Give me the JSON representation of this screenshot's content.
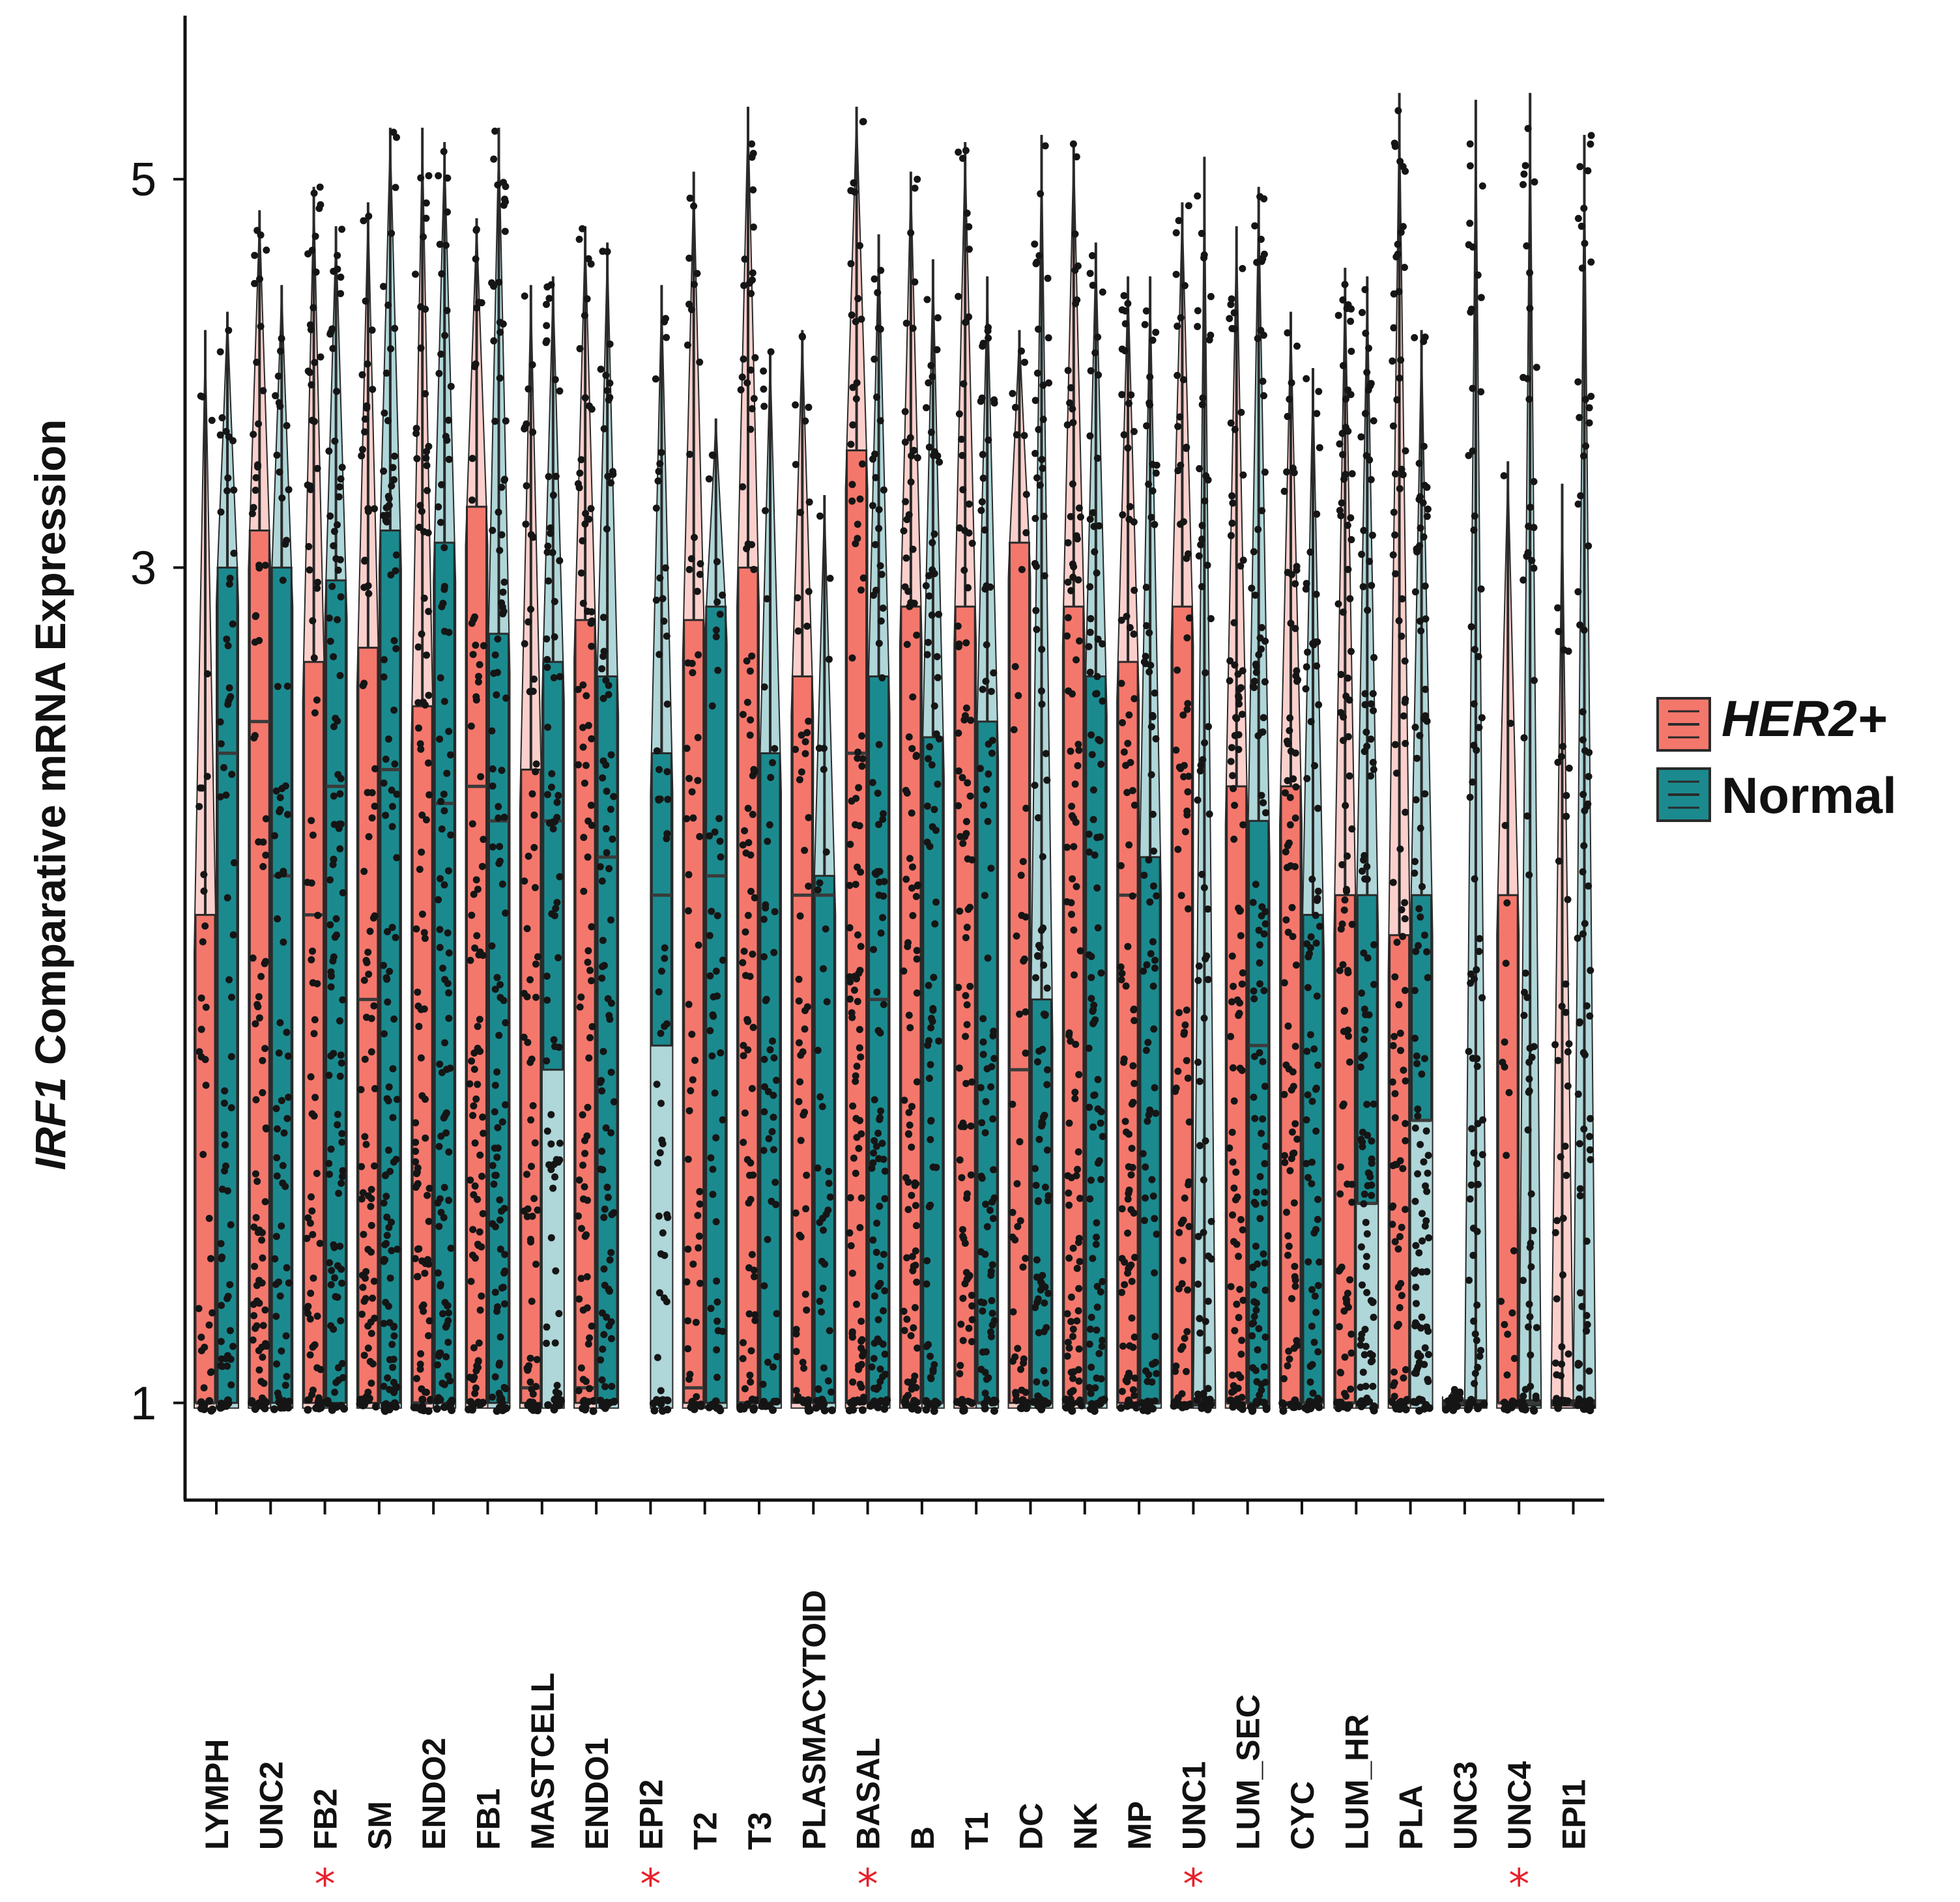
{
  "chart_data": {
    "type": "violin-box",
    "title": "",
    "ylabel_gene": "IRF1",
    "ylabel_rest": " Comparative mRNA Expression",
    "xlabel": "",
    "yscale": "log",
    "ylim": [
      0.88,
      6.2
    ],
    "yticks": [
      {
        "value": 1,
        "label": "1"
      },
      {
        "value": 3,
        "label": "3"
      },
      {
        "value": 5,
        "label": "5"
      }
    ],
    "legend": {
      "position": "right",
      "items": [
        {
          "label": "HER2+",
          "italic": true,
          "color": "#f4776c"
        },
        {
          "label": "Normal",
          "italic": false,
          "color": "#1b8a8e"
        }
      ]
    },
    "colors": {
      "her2": "#f4776c",
      "normal": "#1b8a8e",
      "star": "#e8202a",
      "points": "#151515"
    },
    "categories": [
      {
        "name": "LYMPH",
        "star": false,
        "her2": {
          "q1": 1.0,
          "median": 1.0,
          "q3": 1.9,
          "max": 4.1,
          "dots": 0.25
        },
        "normal": {
          "q1": 1.0,
          "median": 2.35,
          "q3": 3.0,
          "max": 4.2,
          "dots": 0.6
        }
      },
      {
        "name": "UNC2",
        "star": false,
        "her2": {
          "q1": 1.0,
          "median": 2.45,
          "q3": 3.15,
          "max": 4.8,
          "dots": 0.8
        },
        "normal": {
          "q1": 1.0,
          "median": 2.0,
          "q3": 3.0,
          "max": 4.35,
          "dots": 0.6
        }
      },
      {
        "name": "FB2",
        "star": true,
        "her2": {
          "q1": 1.0,
          "median": 1.9,
          "q3": 2.65,
          "max": 4.95,
          "dots": 0.7
        },
        "normal": {
          "q1": 1.0,
          "median": 2.25,
          "q3": 2.95,
          "max": 4.7,
          "dots": 1.0
        }
      },
      {
        "name": "SM",
        "star": false,
        "her2": {
          "q1": 1.0,
          "median": 1.7,
          "q3": 2.7,
          "max": 4.85,
          "dots": 0.8
        },
        "normal": {
          "q1": 1.0,
          "median": 2.3,
          "q3": 3.15,
          "max": 5.35,
          "dots": 1.0
        }
      },
      {
        "name": "ENDO2",
        "star": false,
        "her2": {
          "q1": 1.0,
          "median": 1.0,
          "q3": 2.5,
          "max": 5.35,
          "dots": 0.9
        },
        "normal": {
          "q1": 1.0,
          "median": 2.2,
          "q3": 3.1,
          "max": 5.25,
          "dots": 1.0
        }
      },
      {
        "name": "FB1",
        "star": false,
        "her2": {
          "q1": 1.0,
          "median": 2.25,
          "q3": 3.25,
          "max": 4.75,
          "dots": 0.8
        },
        "normal": {
          "q1": 1.0,
          "median": 2.15,
          "q3": 2.75,
          "max": 5.35,
          "dots": 1.0
        }
      },
      {
        "name": "MASTCELL",
        "star": false,
        "her2": {
          "q1": 1.0,
          "median": 1.02,
          "q3": 2.3,
          "max": 4.35,
          "dots": 0.6
        },
        "normal": {
          "q1": 1.55,
          "median": 2.15,
          "q3": 2.65,
          "max": 4.4,
          "dots": 0.7
        }
      },
      {
        "name": "ENDO1",
        "star": false,
        "her2": {
          "q1": 1.0,
          "median": 1.02,
          "q3": 2.8,
          "max": 4.7,
          "dots": 0.8
        },
        "normal": {
          "q1": 1.0,
          "median": 2.05,
          "q3": 2.6,
          "max": 4.6,
          "dots": 0.8
        }
      },
      {
        "name": "EPI2",
        "star": true,
        "her2": null,
        "normal": {
          "q1": 1.6,
          "median": 1.95,
          "q3": 2.35,
          "max": 4.35,
          "dots": 0.5
        }
      },
      {
        "name": "T2",
        "star": false,
        "her2": {
          "q1": 1.0,
          "median": 1.02,
          "q3": 2.8,
          "max": 5.05,
          "dots": 0.5
        },
        "normal": {
          "q1": 1.0,
          "median": 2.0,
          "q3": 2.85,
          "max": 3.65,
          "dots": 0.4
        }
      },
      {
        "name": "T3",
        "star": false,
        "her2": {
          "q1": 1.0,
          "median": 1.0,
          "q3": 3.0,
          "max": 5.5,
          "dots": 0.8
        },
        "normal": {
          "q1": 1.0,
          "median": 1.0,
          "q3": 2.35,
          "max": 4.0,
          "dots": 0.4
        }
      },
      {
        "name": "PLASMACYTOID",
        "star": false,
        "her2": {
          "q1": 1.0,
          "median": 1.95,
          "q3": 2.6,
          "max": 4.1,
          "dots": 0.5
        },
        "normal": {
          "q1": 1.0,
          "median": 1.95,
          "q3": 2.0,
          "max": 3.3,
          "dots": 0.3
        }
      },
      {
        "name": "BASAL",
        "star": true,
        "her2": {
          "q1": 1.0,
          "median": 2.35,
          "q3": 3.5,
          "max": 5.5,
          "dots": 1.0
        },
        "normal": {
          "q1": 1.0,
          "median": 1.7,
          "q3": 2.6,
          "max": 4.65,
          "dots": 0.9
        }
      },
      {
        "name": "B",
        "star": false,
        "her2": {
          "q1": 1.0,
          "median": 1.0,
          "q3": 2.85,
          "max": 5.05,
          "dots": 0.9
        },
        "normal": {
          "q1": 1.0,
          "median": 1.0,
          "q3": 2.4,
          "max": 4.5,
          "dots": 0.7
        }
      },
      {
        "name": "T1",
        "star": false,
        "her2": {
          "q1": 1.0,
          "median": 1.0,
          "q3": 2.85,
          "max": 5.25,
          "dots": 0.9
        },
        "normal": {
          "q1": 1.0,
          "median": 1.0,
          "q3": 2.45,
          "max": 4.4,
          "dots": 0.8
        }
      },
      {
        "name": "DC",
        "star": false,
        "her2": {
          "q1": 1.0,
          "median": 1.55,
          "q3": 3.1,
          "max": 4.1,
          "dots": 0.4
        },
        "normal": {
          "q1": 1.0,
          "median": 1.0,
          "q3": 1.7,
          "max": 5.3,
          "dots": 0.9
        }
      },
      {
        "name": "NK",
        "star": false,
        "her2": {
          "q1": 1.0,
          "median": 1.0,
          "q3": 2.85,
          "max": 5.25,
          "dots": 1.0
        },
        "normal": {
          "q1": 1.0,
          "median": 1.0,
          "q3": 2.6,
          "max": 4.6,
          "dots": 0.9
        }
      },
      {
        "name": "MP",
        "star": false,
        "her2": {
          "q1": 1.0,
          "median": 1.95,
          "q3": 2.65,
          "max": 4.4,
          "dots": 0.9
        },
        "normal": {
          "q1": 1.0,
          "median": 1.0,
          "q3": 2.05,
          "max": 4.4,
          "dots": 0.7
        }
      },
      {
        "name": "UNC1",
        "star": true,
        "her2": {
          "q1": 1.0,
          "median": 1.0,
          "q3": 2.85,
          "max": 4.85,
          "dots": 0.7
        },
        "normal": {
          "q1": 1.0,
          "median": 1.0,
          "q3": 1.0,
          "max": 5.15,
          "dots": 0.6
        }
      },
      {
        "name": "LUM_SEC",
        "star": false,
        "her2": {
          "q1": 1.0,
          "median": 1.0,
          "q3": 2.25,
          "max": 4.7,
          "dots": 0.9
        },
        "normal": {
          "q1": 1.0,
          "median": 1.6,
          "q3": 2.15,
          "max": 4.95,
          "dots": 1.0
        }
      },
      {
        "name": "CYC",
        "star": false,
        "her2": {
          "q1": 1.0,
          "median": 1.0,
          "q3": 2.25,
          "max": 4.2,
          "dots": 0.8
        },
        "normal": {
          "q1": 1.0,
          "median": 1.0,
          "q3": 1.9,
          "max": 3.9,
          "dots": 0.7
        }
      },
      {
        "name": "LUM_HR",
        "star": false,
        "her2": {
          "q1": 1.0,
          "median": 1.0,
          "q3": 1.95,
          "max": 4.45,
          "dots": 0.9
        },
        "normal": {
          "q1": 1.3,
          "median": 1.3,
          "q3": 1.95,
          "max": 4.4,
          "dots": 1.0
        }
      },
      {
        "name": "PLA",
        "star": false,
        "her2": {
          "q1": 1.0,
          "median": 1.0,
          "q3": 1.85,
          "max": 5.6,
          "dots": 0.9
        },
        "normal": {
          "q1": 1.45,
          "median": 1.45,
          "q3": 1.95,
          "max": 4.1,
          "dots": 1.0
        }
      },
      {
        "name": "UNC3",
        "star": false,
        "her2": {
          "q1": 1.0,
          "median": 1.0,
          "q3": 1.0,
          "max": 1.02,
          "dots": 0.1
        },
        "normal": {
          "q1": 1.0,
          "median": 1.0,
          "q3": 1.0,
          "max": 5.55,
          "dots": 0.6
        }
      },
      {
        "name": "UNC4",
        "star": true,
        "her2": {
          "q1": 1.0,
          "median": 1.0,
          "q3": 1.95,
          "max": 3.45,
          "dots": 0.1
        },
        "normal": {
          "q1": 1.0,
          "median": 1.0,
          "q3": 1.0,
          "max": 5.6,
          "dots": 0.5
        }
      },
      {
        "name": "EPI1",
        "star": false,
        "her2": {
          "q1": 1.0,
          "median": 1.0,
          "q3": 1.0,
          "max": 3.35,
          "dots": 0.3
        },
        "normal": {
          "q1": 1.0,
          "median": 1.0,
          "q3": 1.0,
          "max": 5.3,
          "dots": 0.7
        }
      }
    ]
  }
}
